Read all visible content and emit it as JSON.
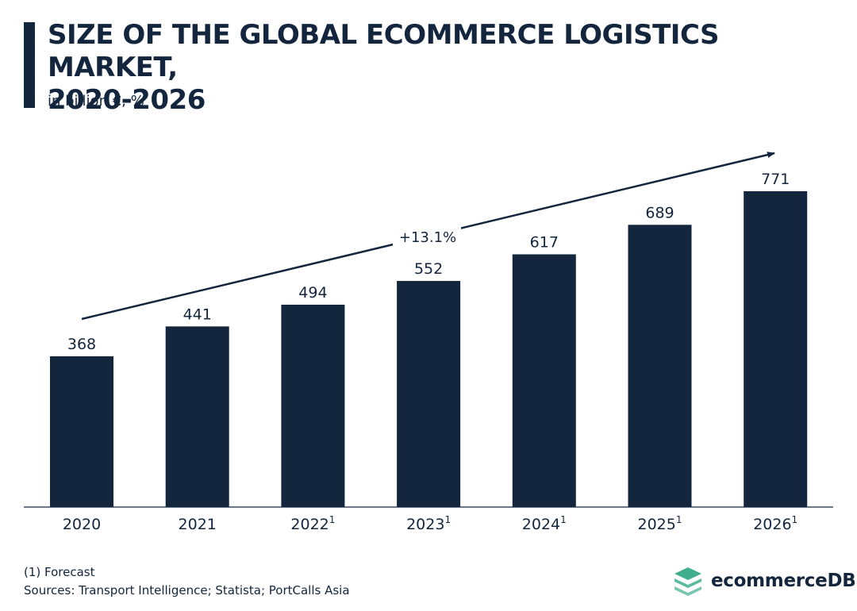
{
  "title": "SIZE OF THE GLOBAL ECOMMERCE LOGISTICS MARKET,\n2020-2026",
  "subtitle": "in billion €, %",
  "footnote": "(1)  Forecast",
  "sources": "Sources: Transport Intelligence; Statista; PortCalls Asia",
  "brand": {
    "name": "ecommerceDB",
    "icon": "stacked-layers-logo-icon",
    "color": "#3fae8c"
  },
  "colors": {
    "bar": "#13263d",
    "text": "#13263d",
    "axis": "#13263d"
  },
  "chart_data": {
    "type": "bar",
    "categories": [
      "2020",
      "2021",
      "2022",
      "2023",
      "2024",
      "2025",
      "2026"
    ],
    "category_superscripts": [
      "",
      "",
      "1",
      "1",
      "1",
      "1",
      "1"
    ],
    "values": [
      368,
      441,
      494,
      552,
      617,
      689,
      771
    ],
    "title": "SIZE OF THE GLOBAL ECOMMERCE LOGISTICS MARKET, 2020-2026",
    "unit": "in billion €, %",
    "annotation": "+13.1%",
    "ylim": [
      0,
      771
    ],
    "grid": false,
    "legend": "none"
  }
}
